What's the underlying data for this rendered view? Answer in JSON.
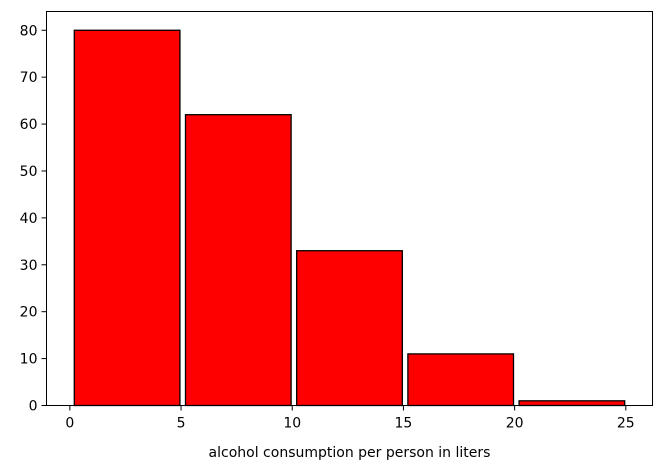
{
  "chart_data": {
    "type": "histogram",
    "title": "",
    "xlabel": "alcohol consumption per person in liters",
    "ylabel": "",
    "bars": [
      {
        "x0": 0.2,
        "x1": 4.95,
        "value": 80
      },
      {
        "x0": 5.2,
        "x1": 9.95,
        "value": 62
      },
      {
        "x0": 10.2,
        "x1": 14.95,
        "value": 33
      },
      {
        "x0": 15.2,
        "x1": 19.95,
        "value": 11
      },
      {
        "x0": 20.2,
        "x1": 24.95,
        "value": 1
      }
    ],
    "xlim": [
      -1.05,
      26.2
    ],
    "ylim": [
      0,
      84
    ],
    "xticks": [
      0,
      5,
      10,
      15,
      20,
      25
    ],
    "yticks": [
      0,
      10,
      20,
      30,
      40,
      50,
      60,
      70,
      80
    ],
    "bar_color": "#ff0000",
    "edge_color": "#000000",
    "grid": false,
    "legend": "none"
  }
}
